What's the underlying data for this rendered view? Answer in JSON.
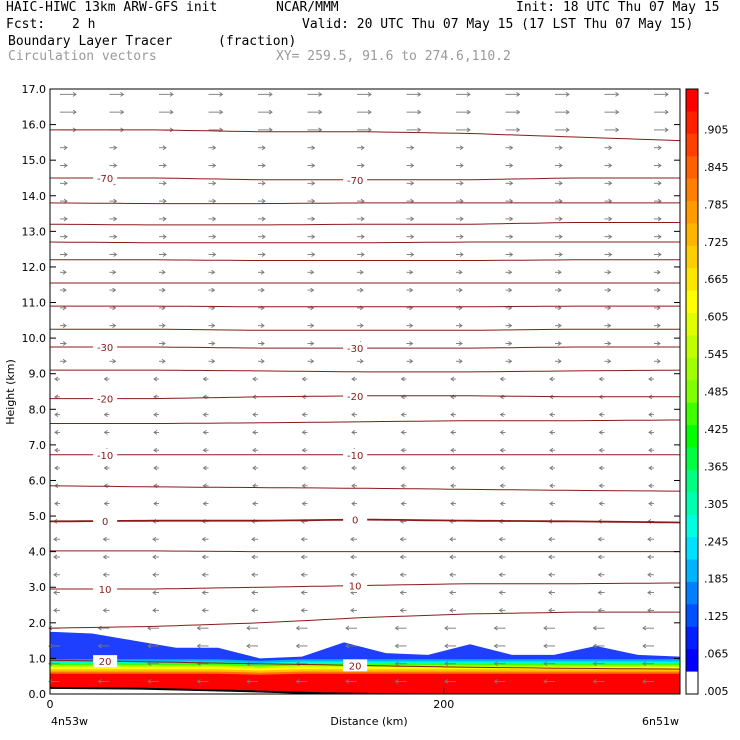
{
  "header": {
    "title_left": "HAIC-HIWC 13km ARW-GFS init",
    "org": "NCAR/MMM",
    "init": "Init: 18 UTC Thu 07 May 15",
    "fcst_label": "Fcst:",
    "fcst_value": "2 h",
    "valid": "Valid: 20 UTC Thu 07 May 15 (17 LST Thu 07 May 15)",
    "field_name": "Boundary Layer Tracer",
    "field_units": "(fraction)",
    "vector_name": "Circulation vectors",
    "xy_range": "XY= 259.5, 91.6 to 274.6,110.2"
  },
  "chart_data": {
    "type": "heatmap",
    "xlabel": "Distance (km)",
    "ylabel": "Height (km)",
    "xlim": [
      0,
      320
    ],
    "ylim": [
      0,
      17
    ],
    "x_ticks": [
      "0",
      "200"
    ],
    "x_end_labels": {
      "left": "4n53w",
      "right": "6n51w"
    },
    "y_ticks": [
      "0.0",
      "1.0",
      "2.0",
      "3.0",
      "4.0",
      "5.0",
      "6.0",
      "7.0",
      "8.0",
      "9.0",
      "10.0",
      "11.0",
      "12.0",
      "13.0",
      "14.0",
      "15.0",
      "16.0",
      "17.0"
    ],
    "colorbar": {
      "labels": [
        "–",
        ".905",
        ".845",
        ".785",
        ".725",
        ".665",
        ".605",
        ".545",
        ".485",
        ".425",
        ".365",
        ".305",
        ".245",
        ".185",
        ".125",
        ".065",
        ".005"
      ],
      "colors": [
        "#ff0000",
        "#ff2000",
        "#ff4000",
        "#ff6000",
        "#ff8000",
        "#ff9a00",
        "#ffb400",
        "#ffce00",
        "#ffe600",
        "#ffff00",
        "#e0ff00",
        "#c0ff00",
        "#a0ff00",
        "#80ff00",
        "#40ff00",
        "#00ff00",
        "#00ff40",
        "#00ff80",
        "#00ffb0",
        "#00ffe0",
        "#00e0ff",
        "#00b4ff",
        "#0080ff",
        "#0050ff",
        "#0020ff",
        "#0000ff",
        "#ffffff"
      ]
    },
    "temperature_contours": [
      {
        "label": "-70",
        "z": [
          14.5,
          14.5,
          14.45,
          14.45,
          14.45,
          14.5,
          14.5
        ]
      },
      {
        "label": "-30",
        "z": [
          9.75,
          9.75,
          9.72,
          9.72,
          9.72,
          9.75,
          9.75
        ]
      },
      {
        "label": "-20",
        "z": [
          8.3,
          8.3,
          8.35,
          8.38,
          8.38,
          8.35,
          8.35
        ]
      },
      {
        "label": "-10",
        "z": [
          6.72,
          6.72,
          6.72,
          6.72,
          6.72,
          6.72,
          6.72
        ]
      },
      {
        "label": "0",
        "z": [
          4.85,
          4.87,
          4.87,
          4.9,
          4.87,
          4.85,
          4.82
        ]
      },
      {
        "label": "10",
        "z": [
          2.95,
          2.95,
          3.0,
          3.05,
          3.1,
          3.1,
          3.12
        ]
      },
      {
        "label": "20",
        "z": [
          0.95,
          0.9,
          0.85,
          0.8,
          0.75,
          0.72,
          0.7
        ]
      },
      {
        "label": "",
        "z": [
          15.85,
          15.85,
          15.8,
          15.8,
          15.75,
          15.65,
          15.55
        ]
      },
      {
        "label": "",
        "z": [
          13.8,
          13.78,
          13.78,
          13.8,
          13.8,
          13.8,
          13.8
        ]
      },
      {
        "label": "",
        "z": [
          13.2,
          13.18,
          13.18,
          13.2,
          13.2,
          13.25,
          13.25
        ]
      },
      {
        "label": "",
        "z": [
          12.7,
          12.68,
          12.68,
          12.68,
          12.7,
          12.7,
          12.7
        ]
      },
      {
        "label": "",
        "z": [
          12.2,
          12.2,
          12.18,
          12.18,
          12.18,
          12.2,
          12.2
        ]
      },
      {
        "label": "",
        "z": [
          11.55,
          11.55,
          11.55,
          11.55,
          11.55,
          11.55,
          11.55
        ]
      },
      {
        "label": "",
        "z": [
          10.9,
          10.9,
          10.88,
          10.88,
          10.88,
          10.9,
          10.9
        ]
      },
      {
        "label": "",
        "z": [
          10.25,
          10.25,
          10.22,
          10.22,
          10.22,
          10.25,
          10.25
        ]
      },
      {
        "label": "",
        "z": [
          9.1,
          9.1,
          9.08,
          9.05,
          9.05,
          9.08,
          9.1
        ]
      },
      {
        "label": "",
        "z": [
          7.6,
          7.6,
          7.62,
          7.65,
          7.68,
          7.68,
          7.7
        ]
      },
      {
        "label": "",
        "z": [
          5.85,
          5.82,
          5.8,
          5.78,
          5.75,
          5.72,
          5.7
        ]
      },
      {
        "label": "",
        "z": [
          4.02,
          4.02,
          4.0,
          4.0,
          4.0,
          4.0,
          4.0
        ]
      },
      {
        "label": "",
        "z": [
          1.85,
          1.9,
          2.0,
          2.15,
          2.25,
          2.3,
          2.3
        ]
      }
    ],
    "tracer_top_km": [
      1.75,
      1.7,
      1.5,
      1.3,
      1.3,
      1.0,
      1.05,
      1.45,
      1.15,
      1.1,
      1.4,
      1.1,
      1.1,
      1.35,
      1.1,
      1.05
    ],
    "surface_km": [
      0.2,
      0.18,
      0.12,
      0.05,
      0.02,
      0.0,
      0.0,
      0.0
    ]
  }
}
